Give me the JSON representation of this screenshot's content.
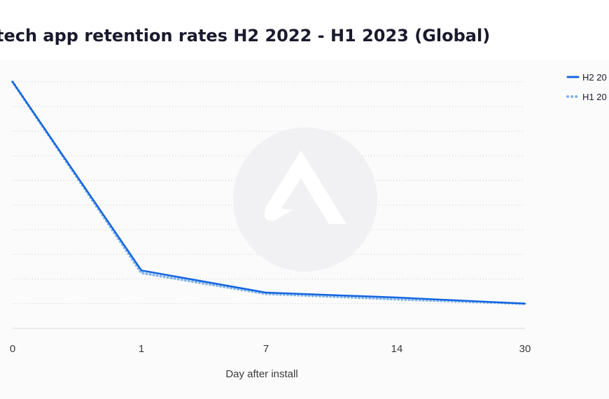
{
  "chart_data": {
    "type": "line",
    "title": "tech app retention rates H2 2022 - H1 2023 (Global)",
    "xlabel": "Day after install",
    "ylabel": "",
    "categories": [
      "0",
      "1",
      "7",
      "14",
      "30"
    ],
    "series": [
      {
        "name": "H2 20",
        "values": [
          100,
          23.5,
          14.5,
          12.5,
          10.0
        ],
        "color": "#1565e0",
        "style": "solid"
      },
      {
        "name": "H1 20",
        "values": [
          100,
          22.5,
          14.0,
          11.8,
          10.0
        ],
        "color": "#7fb3ea",
        "style": "dotted"
      }
    ],
    "ylim": [
      0,
      100
    ],
    "grid": true,
    "legend_position": "top-right",
    "watermark": "logo"
  }
}
